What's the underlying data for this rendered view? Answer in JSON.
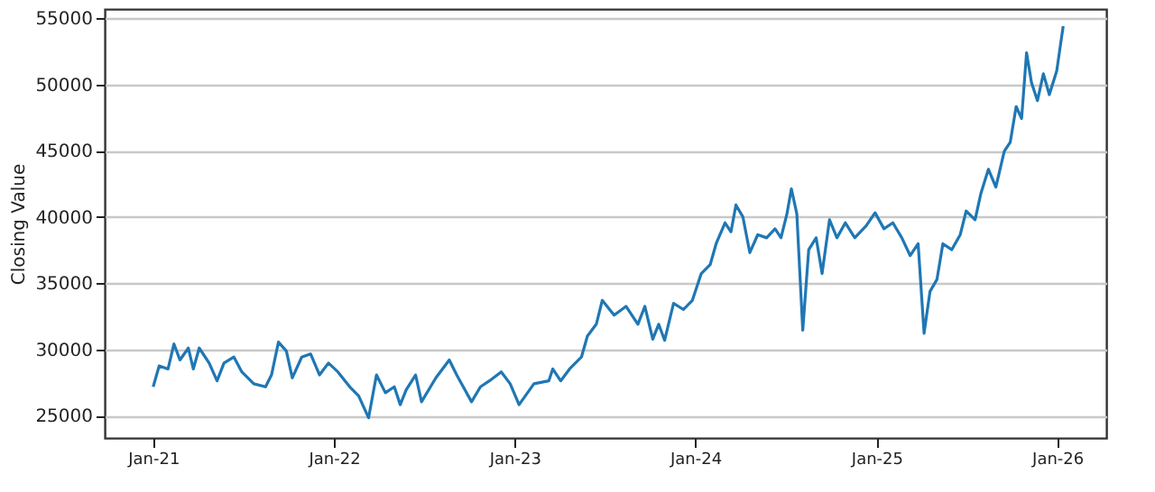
{
  "chart_data": {
    "type": "line",
    "ylabel": "Closing Value",
    "xlim": [
      "2020-09-25",
      "2026-04-10"
    ],
    "ylim": [
      23300,
      55700
    ],
    "xticks": [
      {
        "value": "2021-01-01",
        "label": "Jan-21"
      },
      {
        "value": "2022-01-01",
        "label": "Jan-22"
      },
      {
        "value": "2023-01-01",
        "label": "Jan-23"
      },
      {
        "value": "2024-01-01",
        "label": "Jan-24"
      },
      {
        "value": "2025-01-01",
        "label": "Jan-25"
      },
      {
        "value": "2026-01-01",
        "label": "Jan-26"
      }
    ],
    "yticks": [
      25000,
      30000,
      35000,
      40000,
      45000,
      50000,
      55000
    ],
    "grid": "y",
    "x": [
      "2021-01-01",
      "2021-01-13",
      "2021-01-31",
      "2021-02-12",
      "2021-02-24",
      "2021-03-13",
      "2021-03-23",
      "2021-04-04",
      "2021-04-24",
      "2021-05-10",
      "2021-05-24",
      "2021-06-13",
      "2021-06-29",
      "2021-07-23",
      "2021-08-16",
      "2021-08-28",
      "2021-09-11",
      "2021-09-27",
      "2021-10-09",
      "2021-10-28",
      "2021-11-15",
      "2021-12-03",
      "2021-12-21",
      "2022-01-09",
      "2022-02-02",
      "2022-02-20",
      "2022-03-12",
      "2022-03-28",
      "2022-04-15",
      "2022-05-03",
      "2022-05-15",
      "2022-05-27",
      "2022-06-15",
      "2022-06-27",
      "2022-07-26",
      "2022-08-22",
      "2022-09-06",
      "2022-10-06",
      "2022-10-24",
      "2022-11-11",
      "2022-12-05",
      "2022-12-23",
      "2023-01-10",
      "2023-02-09",
      "2023-03-11",
      "2023-03-19",
      "2023-04-04",
      "2023-04-22",
      "2023-05-16",
      "2023-05-28",
      "2023-06-15",
      "2023-06-27",
      "2023-07-21",
      "2023-08-14",
      "2023-09-07",
      "2023-09-21",
      "2023-10-07",
      "2023-10-19",
      "2023-10-31",
      "2023-11-18",
      "2023-12-08",
      "2023-12-26",
      "2024-01-13",
      "2024-01-31",
      "2024-02-12",
      "2024-03-01",
      "2024-03-13",
      "2024-03-23",
      "2024-04-06",
      "2024-04-20",
      "2024-05-06",
      "2024-05-24",
      "2024-06-10",
      "2024-06-22",
      "2024-07-04",
      "2024-07-13",
      "2024-07-24",
      "2024-08-05",
      "2024-08-17",
      "2024-09-01",
      "2024-09-13",
      "2024-09-28",
      "2024-10-13",
      "2024-10-30",
      "2024-11-18",
      "2024-12-11",
      "2024-12-29",
      "2025-01-16",
      "2025-02-03",
      "2025-02-21",
      "2025-03-10",
      "2025-03-26",
      "2025-04-07",
      "2025-04-19",
      "2025-05-03",
      "2025-05-15",
      "2025-06-02",
      "2025-06-19",
      "2025-07-01",
      "2025-07-19",
      "2025-07-31",
      "2025-08-15",
      "2025-08-30",
      "2025-09-16",
      "2025-09-28",
      "2025-10-10",
      "2025-10-21",
      "2025-10-31",
      "2025-11-10",
      "2025-11-22",
      "2025-12-04",
      "2025-12-16",
      "2025-12-31",
      "2026-01-06",
      "2026-01-13"
    ],
    "series": [
      {
        "color": "#1f77b4",
        "values": [
          27160,
          28740,
          28510,
          30400,
          29190,
          30090,
          28510,
          30090,
          28960,
          27610,
          28960,
          29410,
          28290,
          27390,
          27160,
          28060,
          30540,
          29860,
          27840,
          29410,
          29640,
          28060,
          28960,
          28290,
          27160,
          26480,
          24820,
          28060,
          26710,
          27160,
          25810,
          26930,
          28060,
          26030,
          27840,
          29190,
          28060,
          26030,
          27160,
          27610,
          28290,
          27390,
          25810,
          27390,
          27610,
          28510,
          27610,
          28510,
          29410,
          30990,
          31890,
          33690,
          32570,
          33240,
          31890,
          33240,
          30760,
          31890,
          30670,
          33460,
          33000,
          33690,
          35720,
          36390,
          37970,
          39550,
          38870,
          40900,
          40000,
          37300,
          38650,
          38420,
          39100,
          38420,
          40220,
          42120,
          40220,
          31440,
          37520,
          38420,
          35720,
          39780,
          38420,
          39550,
          38420,
          39320,
          40310,
          39100,
          39550,
          38420,
          37070,
          37970,
          31210,
          34370,
          35270,
          37970,
          37520,
          38650,
          40450,
          39780,
          41800,
          43600,
          42250,
          44950,
          45630,
          48330,
          47430,
          52390,
          50140,
          48780,
          50810,
          49230,
          51040,
          52610,
          54410
        ]
      }
    ]
  }
}
